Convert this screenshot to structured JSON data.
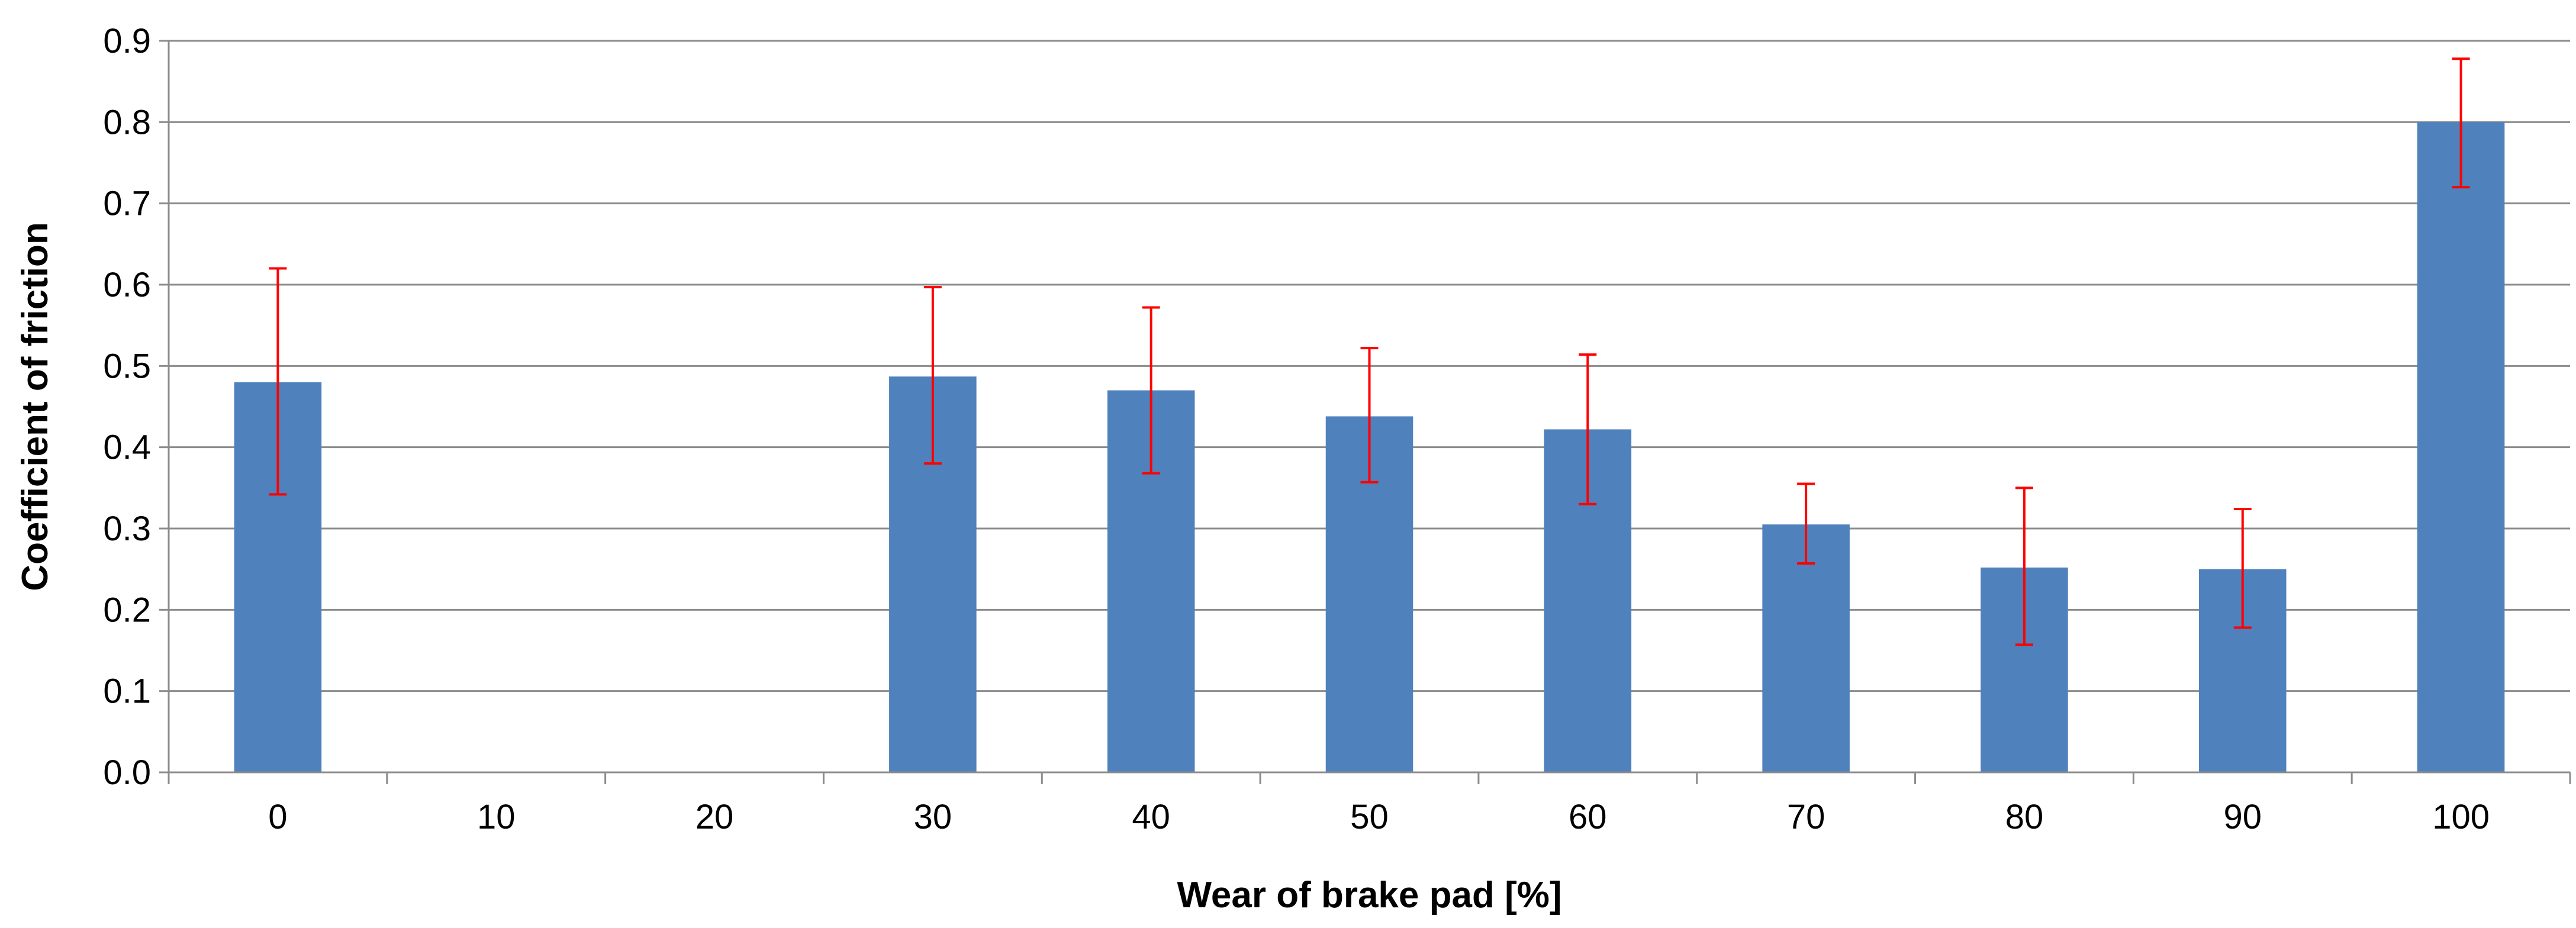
{
  "chart_data": {
    "type": "bar",
    "xlabel": "Wear of brake pad [%]",
    "ylabel": "Coefficient of friction",
    "categories": [
      "0",
      "10",
      "20",
      "30",
      "40",
      "50",
      "60",
      "70",
      "80",
      "90",
      "100"
    ],
    "values": [
      0.48,
      null,
      null,
      0.487,
      0.47,
      0.438,
      0.422,
      0.305,
      0.252,
      0.25,
      0.8
    ],
    "error_low": [
      0.342,
      null,
      null,
      0.38,
      0.368,
      0.357,
      0.33,
      0.257,
      0.157,
      0.178,
      0.72
    ],
    "error_high": [
      0.62,
      null,
      null,
      0.597,
      0.572,
      0.522,
      0.514,
      0.355,
      0.35,
      0.324,
      0.878
    ],
    "ylim": [
      0,
      0.9
    ],
    "yticks": [
      "0.0",
      "0.1",
      "0.2",
      "0.3",
      "0.4",
      "0.5",
      "0.6",
      "0.7",
      "0.8",
      "0.9"
    ],
    "grid": true,
    "legend": "none",
    "colors": {
      "bar": "#4F81BD",
      "error_bar": "#FF0000",
      "grid": "#8C8C8C",
      "axis": "#8C8C8C"
    }
  }
}
